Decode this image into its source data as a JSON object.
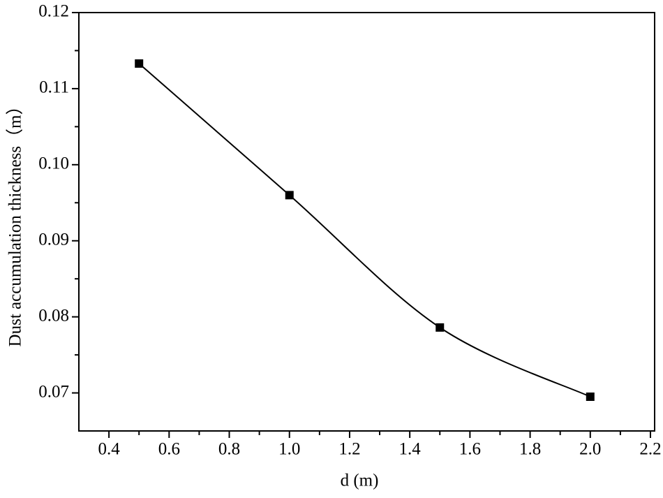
{
  "chart_data": {
    "type": "line",
    "xlabel": "d (m)",
    "ylabel": "Dust accumulation thickness（m）",
    "x": [
      0.5,
      1.0,
      1.5,
      2.0
    ],
    "series": [
      {
        "color": "#000000",
        "values": [
          0.1133,
          0.096,
          0.0786,
          0.0695
        ]
      }
    ],
    "xlim": [
      0.3,
      2.2
    ],
    "ylim": [
      0.065,
      0.12
    ],
    "xticks": [
      0.4,
      0.6,
      0.8,
      {
        "value": 1,
        "label": "1.0"
      },
      1.2,
      1.4,
      1.6,
      1.8,
      {
        "value": 2,
        "label": "2.0"
      },
      2.2
    ],
    "yticks": [
      {
        "value": 0.07,
        "label": "0.07"
      },
      {
        "value": 0.08,
        "label": "0.08"
      },
      {
        "value": 0.09,
        "label": "0.09"
      },
      {
        "value": 0.1,
        "label": "0.10"
      },
      {
        "value": 0.11,
        "label": "0.11"
      },
      0.12
    ],
    "smooth": true
  }
}
